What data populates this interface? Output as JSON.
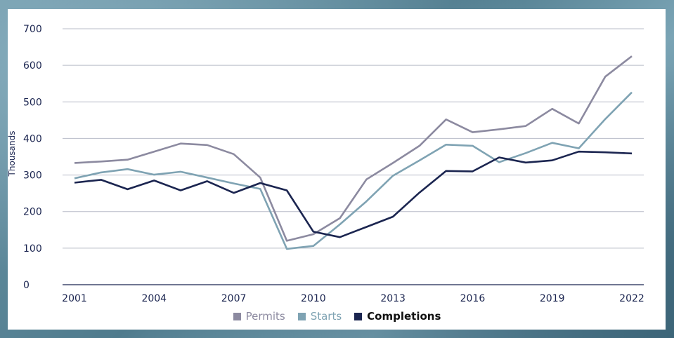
{
  "chart_data": {
    "type": "line",
    "ylabel": "Thousands",
    "xlabel": "",
    "title": "",
    "ylim": [
      0,
      700
    ],
    "yticks": [
      0,
      100,
      200,
      300,
      400,
      500,
      600,
      700
    ],
    "xticks": [
      2001,
      2004,
      2007,
      2010,
      2013,
      2016,
      2019,
      2022
    ],
    "xlim": [
      2001,
      2022
    ],
    "grid": true,
    "legend_position": "bottom",
    "x": [
      2001,
      2002,
      2003,
      2004,
      2005,
      2006,
      2007,
      2008,
      2009,
      2010,
      2011,
      2012,
      2013,
      2014,
      2015,
      2016,
      2017,
      2018,
      2019,
      2020,
      2021,
      2022
    ],
    "series": [
      {
        "name": "Permits",
        "color": "#8c8aa0",
        "values": [
          333,
          337,
          342,
          364,
          386,
          382,
          357,
          293,
          120,
          138,
          182,
          288,
          333,
          380,
          452,
          417,
          425,
          434,
          481,
          441,
          569,
          625
        ]
      },
      {
        "name": "Starts",
        "color": "#7fa3b3",
        "values": [
          291,
          307,
          316,
          301,
          309,
          293,
          277,
          262,
          98,
          106,
          165,
          228,
          298,
          340,
          383,
          380,
          335,
          360,
          388,
          373,
          453,
          526
        ]
      },
      {
        "name": "Completions",
        "color": "#1b2550",
        "values": [
          279,
          287,
          261,
          285,
          258,
          283,
          251,
          278,
          258,
          145,
          130,
          158,
          186,
          252,
          311,
          310,
          348,
          334,
          340,
          364,
          362,
          359
        ]
      }
    ]
  }
}
